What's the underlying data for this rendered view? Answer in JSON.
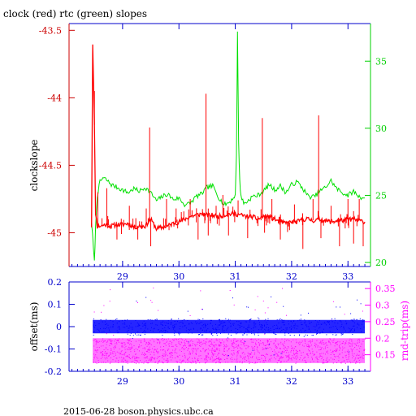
{
  "chart_data": [
    {
      "type": "line",
      "title": "clock (red) rtc (green) slopes",
      "ylabel": "clockslope",
      "ylabel_right": "",
      "xlim": [
        28.05,
        33.4
      ],
      "x_ticks": [
        "29",
        "30",
        "31",
        "32",
        "33"
      ],
      "x_tick_values": [
        29,
        30,
        31,
        32,
        33
      ],
      "ylim_left": [
        -45.25,
        -43.45
      ],
      "y_ticks_left": [
        "-43.5",
        "-44",
        "-44.5",
        "-45"
      ],
      "y_tick_values_left": [
        -43.5,
        -44,
        -44.5,
        -45
      ],
      "ylim_right": [
        19.7,
        37.8
      ],
      "y_ticks_right": [
        "35",
        "30",
        "25",
        "20"
      ],
      "y_tick_values_right": [
        35,
        30,
        25,
        20
      ],
      "colors": {
        "clock": "#ff0000",
        "rtc": "#00e000",
        "left_axis": "#cc0000",
        "right_axis": "#00d000",
        "x_axis": "#0000cc"
      },
      "series": [
        {
          "axis": "left",
          "x": [
            28.45,
            28.47,
            28.5,
            28.52,
            28.55,
            28.6,
            28.7,
            28.8,
            28.9,
            29.0,
            29.1,
            29.2,
            29.3,
            29.4,
            29.5,
            29.6,
            29.7,
            29.8,
            29.9,
            30.0,
            30.1,
            30.2,
            30.3,
            30.4,
            30.5,
            30.6,
            30.7,
            30.8,
            30.9,
            31.0,
            31.1,
            31.2,
            31.3,
            31.4,
            31.5,
            31.6,
            31.7,
            31.8,
            31.9,
            32.0,
            32.1,
            32.2,
            32.3,
            32.4,
            32.5,
            32.6,
            32.7,
            32.8,
            32.9,
            33.0,
            33.1,
            33.2,
            33.3
          ],
          "y": [
            -44.95,
            -43.6,
            -44.2,
            -44.85,
            -44.95,
            -44.95,
            -44.94,
            -44.95,
            -44.94,
            -44.94,
            -44.93,
            -44.96,
            -44.95,
            -44.95,
            -44.9,
            -44.97,
            -44.96,
            -44.95,
            -44.93,
            -44.92,
            -44.9,
            -44.88,
            -44.87,
            -44.86,
            -44.87,
            -44.87,
            -44.88,
            -44.87,
            -44.86,
            -44.86,
            -44.87,
            -44.88,
            -44.88,
            -44.9,
            -44.88,
            -44.88,
            -44.9,
            -44.92,
            -44.93,
            -44.92,
            -44.92,
            -44.9,
            -44.9,
            -44.91,
            -44.9,
            -44.91,
            -44.92,
            -44.91,
            -44.91,
            -44.9,
            -44.9,
            -44.91,
            -44.92
          ],
          "spikes": [
            {
              "x": 28.5,
              "y": -43.95
            },
            {
              "x": 28.56,
              "y": -44.7
            },
            {
              "x": 28.72,
              "y": -44.67
            },
            {
              "x": 28.9,
              "y": -45.05
            },
            {
              "x": 29.12,
              "y": -44.8
            },
            {
              "x": 29.27,
              "y": -45.05
            },
            {
              "x": 29.42,
              "y": -44.82
            },
            {
              "x": 29.48,
              "y": -44.22
            },
            {
              "x": 29.5,
              "y": -45.1
            },
            {
              "x": 29.78,
              "y": -44.75
            },
            {
              "x": 29.95,
              "y": -44.82
            },
            {
              "x": 30.2,
              "y": -44.75
            },
            {
              "x": 30.34,
              "y": -45.05
            },
            {
              "x": 30.48,
              "y": -43.97
            },
            {
              "x": 30.52,
              "y": -45.02
            },
            {
              "x": 30.66,
              "y": -44.8
            },
            {
              "x": 30.78,
              "y": -44.72
            },
            {
              "x": 30.88,
              "y": -45.02
            },
            {
              "x": 31.05,
              "y": -44.76
            },
            {
              "x": 31.22,
              "y": -45.04
            },
            {
              "x": 31.48,
              "y": -44.15
            },
            {
              "x": 31.52,
              "y": -45.0
            },
            {
              "x": 31.65,
              "y": -44.75
            },
            {
              "x": 31.8,
              "y": -45.05
            },
            {
              "x": 32.05,
              "y": -44.79
            },
            {
              "x": 32.2,
              "y": -45.12
            },
            {
              "x": 32.38,
              "y": -44.75
            },
            {
              "x": 32.48,
              "y": -44.13
            },
            {
              "x": 32.52,
              "y": -45.04
            },
            {
              "x": 32.7,
              "y": -44.8
            },
            {
              "x": 32.85,
              "y": -45.1
            },
            {
              "x": 33.0,
              "y": -44.75
            },
            {
              "x": 33.1,
              "y": -45.08
            },
            {
              "x": 33.2,
              "y": -44.75
            },
            {
              "x": 33.27,
              "y": -45.1
            }
          ]
        },
        {
          "axis": "right",
          "x": [
            28.45,
            28.5,
            28.52,
            28.55,
            28.6,
            28.65,
            28.7,
            28.8,
            28.9,
            29.0,
            29.1,
            29.2,
            29.3,
            29.4,
            29.5,
            29.6,
            29.7,
            29.8,
            29.9,
            30.0,
            30.1,
            30.2,
            30.3,
            30.4,
            30.5,
            30.6,
            30.7,
            30.8,
            30.9,
            31.0,
            31.02,
            31.04,
            31.06,
            31.08,
            31.1,
            31.15,
            31.2,
            31.3,
            31.4,
            31.5,
            31.6,
            31.7,
            31.8,
            31.9,
            32.0,
            32.1,
            32.2,
            32.3,
            32.4,
            32.5,
            32.6,
            32.7,
            32.8,
            32.9,
            33.0,
            33.1,
            33.2,
            33.3
          ],
          "y": [
            23.0,
            20.0,
            22.5,
            25.0,
            26.0,
            26.3,
            26.2,
            25.8,
            25.6,
            25.4,
            25.2,
            25.5,
            25.3,
            25.6,
            25.2,
            24.6,
            24.9,
            25.1,
            24.7,
            24.8,
            24.3,
            24.4,
            24.9,
            25.1,
            25.6,
            25.7,
            24.9,
            24.3,
            24.5,
            25.0,
            28.0,
            37.2,
            29.0,
            26.0,
            25.0,
            24.4,
            24.5,
            24.9,
            25.0,
            25.3,
            25.8,
            25.4,
            25.7,
            25.2,
            25.8,
            26.0,
            25.5,
            24.9,
            24.9,
            25.3,
            25.6,
            26.1,
            25.5,
            25.2,
            25.0,
            25.3,
            24.9,
            24.8
          ]
        }
      ]
    },
    {
      "type": "scatter",
      "title": "",
      "ylabel": "offset(ms)",
      "ylabel_right": "rnd-trip(ms)",
      "xlim": [
        28.05,
        33.4
      ],
      "x_ticks": [
        "29",
        "30",
        "31",
        "32",
        "33"
      ],
      "x_tick_values": [
        29,
        30,
        31,
        32,
        33
      ],
      "ylim_left": [
        -0.2,
        0.2
      ],
      "y_ticks_left": [
        "0.2",
        "0.1",
        "0",
        "-0.1",
        "-0.2"
      ],
      "y_tick_values_left": [
        0.2,
        0.1,
        0,
        -0.1,
        -0.2
      ],
      "ylim_right": [
        0.1,
        0.37
      ],
      "y_ticks_right": [
        "0.35",
        "0.3",
        "0.25",
        "0.2",
        "0.15"
      ],
      "y_tick_values_right": [
        0.35,
        0.3,
        0.25,
        0.2,
        0.15
      ],
      "colors": {
        "offset": "#0000ff",
        "roundtrip": "#ff00ff",
        "left_axis": "#0000cc",
        "right_axis": "#ff00ff",
        "x_axis": "#0000cc"
      },
      "series": [
        {
          "axis": "left",
          "x_range": [
            28.47,
            33.3
          ],
          "y_band": [
            -0.03,
            0.03
          ]
        },
        {
          "axis": "right",
          "x_range": [
            28.47,
            33.3
          ],
          "y_band": [
            0.125,
            0.2
          ]
        }
      ]
    }
  ],
  "footer": "2015-06-28  boson.physics.ubc.ca"
}
